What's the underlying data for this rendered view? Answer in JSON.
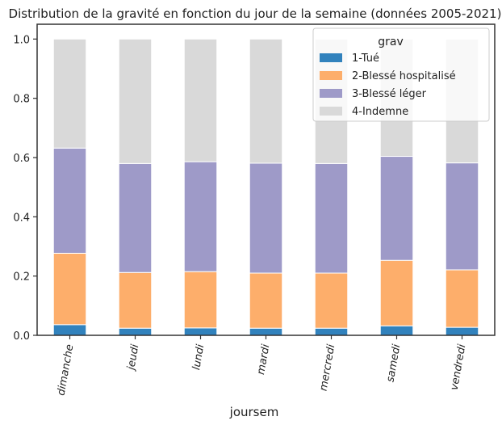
{
  "chart_data": {
    "type": "bar",
    "stacked": true,
    "title": "Distribution de la gravité en fonction du jour de la semaine (données 2005-2021)",
    "xlabel": "joursem",
    "ylabel": "",
    "ylim": [
      0,
      1.05
    ],
    "yticks": [
      "0.0",
      "0.2",
      "0.4",
      "0.6",
      "0.8",
      "1.0"
    ],
    "categories": [
      "dimanche",
      "jeudi",
      "lundi",
      "mardi",
      "mercredi",
      "samedi",
      "vendredi"
    ],
    "legend": {
      "title": "grav",
      "position": "top-right"
    },
    "series": [
      {
        "name": "1-Tué",
        "color": "#3182bd",
        "values": [
          0.036,
          0.024,
          0.025,
          0.024,
          0.024,
          0.032,
          0.027
        ]
      },
      {
        "name": "2-Blessé hospitalisé",
        "color": "#fdae6b",
        "values": [
          0.241,
          0.188,
          0.19,
          0.186,
          0.186,
          0.221,
          0.194
        ]
      },
      {
        "name": "3-Blessé léger",
        "color": "#9e9ac8",
        "values": [
          0.355,
          0.368,
          0.371,
          0.371,
          0.37,
          0.351,
          0.361
        ]
      },
      {
        "name": "4-Indemne",
        "color": "#d9d9d9",
        "values": [
          0.368,
          0.42,
          0.414,
          0.419,
          0.42,
          0.396,
          0.418
        ]
      }
    ]
  }
}
